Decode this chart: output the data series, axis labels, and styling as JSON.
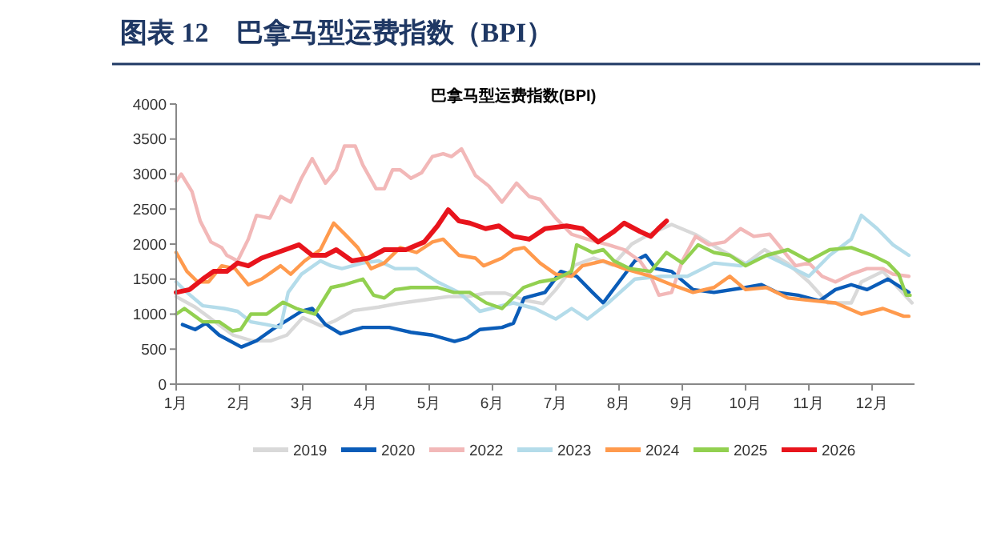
{
  "chart_data": {
    "type": "line",
    "title": "图表 12　巴拿马型运费指数（BPI）",
    "subtitle": "巴拿马型运费指数(BPI)",
    "xlim": [
      1,
      12.67
    ],
    "xticks": [
      {
        "value": 1,
        "label": "1月"
      },
      {
        "value": 2,
        "label": "2月"
      },
      {
        "value": 3,
        "label": "3月"
      },
      {
        "value": 4,
        "label": "4月"
      },
      {
        "value": 5,
        "label": "5月"
      },
      {
        "value": 6,
        "label": "6月"
      },
      {
        "value": 7,
        "label": "7月"
      },
      {
        "value": 8,
        "label": "8月"
      },
      {
        "value": 9,
        "label": "9月"
      },
      {
        "value": 10,
        "label": "10月"
      },
      {
        "value": 11,
        "label": "11月"
      },
      {
        "value": 12,
        "label": "12月"
      }
    ],
    "ylim": [
      0,
      4000
    ],
    "yticks": [
      0,
      500,
      1000,
      1500,
      2000,
      2500,
      3000,
      3500,
      4000
    ],
    "grid": false,
    "legend": "bottom",
    "line_style": "solid",
    "series": [
      {
        "name": "2019",
        "color": "#d9d9d9",
        "x": [
          1,
          1.3,
          1.6,
          1.9,
          2.2,
          2.5,
          2.75,
          3,
          3.3,
          3.5,
          3.8,
          4.2,
          4.5,
          4.9,
          5.3,
          5.6,
          5.9,
          6.2,
          6.5,
          6.8,
          7,
          7.3,
          7.6,
          7.9,
          8.2,
          8.5,
          8.83,
          9.2,
          9.6,
          10,
          10.3,
          10.67,
          11,
          11.3,
          11.67,
          11.83,
          12.17,
          12.63
        ],
        "values": [
          1250,
          1100,
          900,
          700,
          620,
          620,
          700,
          950,
          830,
          900,
          1050,
          1100,
          1150,
          1200,
          1250,
          1250,
          1300,
          1300,
          1200,
          1150,
          1350,
          1700,
          1800,
          1700,
          2000,
          2150,
          2280,
          2140,
          1920,
          1720,
          1920,
          1720,
          1460,
          1160,
          1160,
          1460,
          1610,
          1160
        ]
      },
      {
        "name": "2020",
        "color": "#0a5cb8",
        "x": [
          1.1,
          1.3,
          1.47,
          1.68,
          2.03,
          2.27,
          2.52,
          2.98,
          3.15,
          3.36,
          3.6,
          3.95,
          4.37,
          4.71,
          5.05,
          5.4,
          5.6,
          5.8,
          6.15,
          6.33,
          6.5,
          6.83,
          7.08,
          7.33,
          7.58,
          7.75,
          8,
          8.25,
          8.42,
          8.58,
          8.83,
          9.17,
          9.5,
          10,
          10.25,
          10.5,
          10.83,
          11.17,
          11.42,
          11.67,
          11.92,
          12.25,
          12.58
        ],
        "values": [
          850,
          780,
          870,
          700,
          530,
          620,
          780,
          1040,
          1080,
          850,
          720,
          810,
          810,
          740,
          700,
          610,
          660,
          780,
          810,
          870,
          1230,
          1310,
          1610,
          1540,
          1310,
          1160,
          1460,
          1760,
          1840,
          1650,
          1610,
          1350,
          1310,
          1380,
          1420,
          1310,
          1270,
          1190,
          1350,
          1420,
          1350,
          1500,
          1310
        ]
      },
      {
        "name": "2022",
        "color": "#f2b8b8",
        "x": [
          1,
          1.08,
          1.25,
          1.38,
          1.55,
          1.72,
          1.8,
          1.97,
          2.14,
          2.27,
          2.48,
          2.65,
          2.81,
          2.98,
          3.15,
          3.36,
          3.53,
          3.66,
          3.83,
          3.95,
          4.16,
          4.29,
          4.42,
          4.54,
          4.71,
          4.88,
          5.05,
          5.22,
          5.35,
          5.51,
          5.73,
          5.94,
          6.15,
          6.38,
          6.58,
          6.75,
          7,
          7.25,
          7.5,
          7.83,
          8.08,
          8.33,
          8.5,
          8.63,
          8.83,
          9,
          9.21,
          9.42,
          9.67,
          9.92,
          10.13,
          10.38,
          10.58,
          10.79,
          11,
          11.21,
          11.42,
          11.67,
          11.92,
          12.17,
          12.33,
          12.58
        ],
        "values": [
          2900,
          3000,
          2750,
          2330,
          2030,
          1950,
          1840,
          1760,
          2070,
          2410,
          2370,
          2680,
          2600,
          2940,
          3220,
          2870,
          3060,
          3400,
          3400,
          3130,
          2790,
          2790,
          3060,
          3060,
          2940,
          3020,
          3250,
          3290,
          3250,
          3360,
          2980,
          2830,
          2600,
          2870,
          2680,
          2640,
          2370,
          2140,
          2070,
          1990,
          1920,
          1760,
          1540,
          1270,
          1310,
          1760,
          2110,
          1990,
          2030,
          2220,
          2110,
          2140,
          1920,
          1690,
          1730,
          1540,
          1460,
          1570,
          1650,
          1650,
          1570,
          1540
        ]
      },
      {
        "name": "2023",
        "color": "#b4dcea",
        "x": [
          1,
          1.17,
          1.42,
          1.76,
          1.97,
          2.18,
          2.43,
          2.65,
          2.77,
          2.98,
          3.28,
          3.45,
          3.62,
          3.95,
          4.2,
          4.46,
          4.8,
          5.13,
          5.47,
          5.8,
          6.15,
          6.33,
          6.67,
          7,
          7.25,
          7.5,
          7.83,
          8.25,
          8.67,
          9.08,
          9.5,
          9.92,
          10.33,
          10.67,
          11,
          11.33,
          11.67,
          11.83,
          12.08,
          12.33,
          12.58
        ],
        "values": [
          1460,
          1310,
          1120,
          1080,
          1040,
          890,
          850,
          810,
          1310,
          1570,
          1760,
          1690,
          1650,
          1730,
          1760,
          1650,
          1650,
          1460,
          1310,
          1040,
          1120,
          1160,
          1080,
          930,
          1080,
          930,
          1160,
          1500,
          1540,
          1540,
          1730,
          1690,
          1840,
          1690,
          1540,
          1840,
          2070,
          2410,
          2220,
          1990,
          1840
        ]
      },
      {
        "name": "2024",
        "color": "#ff9a4d",
        "x": [
          1,
          1.17,
          1.34,
          1.51,
          1.72,
          1.93,
          2.14,
          2.35,
          2.65,
          2.81,
          3.03,
          3.28,
          3.49,
          3.7,
          3.87,
          4.08,
          4.29,
          4.54,
          4.8,
          5.05,
          5.22,
          5.47,
          5.73,
          5.86,
          6.15,
          6.33,
          6.5,
          6.75,
          7,
          7.25,
          7.42,
          7.75,
          8.08,
          8.5,
          8.83,
          9.17,
          9.5,
          9.75,
          10,
          10.33,
          10.67,
          11.08,
          11.42,
          11.83,
          12.17,
          12.5,
          12.58
        ],
        "values": [
          1880,
          1610,
          1460,
          1460,
          1690,
          1650,
          1420,
          1500,
          1690,
          1570,
          1760,
          1920,
          2300,
          2110,
          1950,
          1650,
          1730,
          1950,
          1880,
          2030,
          2070,
          1840,
          1800,
          1690,
          1800,
          1920,
          1950,
          1730,
          1570,
          1540,
          1690,
          1760,
          1650,
          1540,
          1420,
          1310,
          1380,
          1540,
          1350,
          1380,
          1230,
          1190,
          1160,
          1000,
          1080,
          970,
          970
        ]
      },
      {
        "name": "2025",
        "color": "#92d050",
        "x": [
          1,
          1.13,
          1.42,
          1.68,
          1.89,
          2.02,
          2.18,
          2.43,
          2.69,
          2.9,
          3.19,
          3.45,
          3.66,
          3.95,
          4.12,
          4.29,
          4.46,
          4.71,
          5.13,
          5.39,
          5.64,
          5.9,
          6.15,
          6.49,
          6.74,
          7,
          7.25,
          7.33,
          7.58,
          7.75,
          7.92,
          8.17,
          8.5,
          8.75,
          9,
          9.25,
          9.5,
          9.75,
          10,
          10.33,
          10.67,
          11,
          11.33,
          11.67,
          12,
          12.25,
          12.42,
          12.54,
          12.6
        ],
        "values": [
          1000,
          1080,
          890,
          890,
          760,
          780,
          1000,
          1000,
          1170,
          1080,
          1000,
          1380,
          1420,
          1500,
          1270,
          1230,
          1350,
          1380,
          1380,
          1310,
          1310,
          1160,
          1080,
          1380,
          1460,
          1500,
          1610,
          1990,
          1880,
          1920,
          1760,
          1650,
          1610,
          1880,
          1730,
          1990,
          1880,
          1840,
          1690,
          1840,
          1920,
          1760,
          1920,
          1950,
          1840,
          1730,
          1570,
          1270,
          1270
        ]
      },
      {
        "name": "2026",
        "color": "#e8141c",
        "x": [
          1,
          1.21,
          1.42,
          1.59,
          1.8,
          1.97,
          2.14,
          2.35,
          2.6,
          2.94,
          3.15,
          3.36,
          3.53,
          3.78,
          4.04,
          4.29,
          4.63,
          4.92,
          5.13,
          5.3,
          5.47,
          5.64,
          5.89,
          6.1,
          6.33,
          6.58,
          6.83,
          7.17,
          7.42,
          7.67,
          7.92,
          8.08,
          8.33,
          8.5,
          8.62,
          8.75
        ],
        "values": [
          1310,
          1350,
          1500,
          1610,
          1610,
          1730,
          1690,
          1800,
          1880,
          1990,
          1840,
          1840,
          1920,
          1760,
          1800,
          1920,
          1920,
          2030,
          2260,
          2490,
          2330,
          2300,
          2220,
          2260,
          2110,
          2070,
          2220,
          2260,
          2220,
          2030,
          2180,
          2300,
          2180,
          2110,
          2220,
          2330
        ]
      }
    ]
  }
}
